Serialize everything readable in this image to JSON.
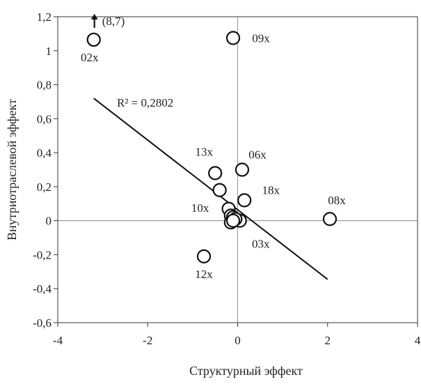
{
  "chart_data": {
    "type": "scatter",
    "xlabel": "Структурный эффект",
    "ylabel": "Внутриотраслевой эффект",
    "xlim": [
      -4,
      4
    ],
    "ylim": [
      -0.6,
      1.2
    ],
    "x_ticks": [
      "-4",
      "-2",
      "0",
      "2",
      "4"
    ],
    "y_ticks": [
      "-0,6",
      "-0,4",
      "-0,2",
      "0",
      "0,2",
      "0,4",
      "0,6",
      "0,8",
      "1",
      "1,2"
    ],
    "grid": false,
    "points": [
      {
        "x": -3.2,
        "y": 1.065,
        "label": "02x"
      },
      {
        "x": -0.1,
        "y": 1.075,
        "label": "09x"
      },
      {
        "x": -0.5,
        "y": 0.28,
        "label": "13x"
      },
      {
        "x": 0.1,
        "y": 0.3,
        "label": "06x"
      },
      {
        "x": -0.4,
        "y": 0.18,
        "label": "10x"
      },
      {
        "x": 0.15,
        "y": 0.12,
        "label": "18x"
      },
      {
        "x": 2.05,
        "y": 0.01,
        "label": "08x"
      },
      {
        "x": 0.05,
        "y": 0.0,
        "label": "03x"
      },
      {
        "x": -0.75,
        "y": -0.21,
        "label": "12x"
      },
      {
        "x": -0.2,
        "y": 0.07,
        "label": ""
      },
      {
        "x": -0.15,
        "y": 0.03,
        "label": ""
      },
      {
        "x": -0.1,
        "y": 0.02,
        "label": ""
      },
      {
        "x": -0.05,
        "y": 0.01,
        "label": ""
      },
      {
        "x": -0.15,
        "y": -0.01,
        "label": ""
      },
      {
        "x": -0.1,
        "y": 0.0,
        "label": ""
      }
    ],
    "trendline": {
      "x1": -3.2,
      "y1": 0.72,
      "x2": 2.0,
      "y2": -0.345,
      "label": "R² = 0,2802"
    },
    "annotation": {
      "text": "(8,7)",
      "arrow": "up",
      "point_label": "02x"
    }
  }
}
